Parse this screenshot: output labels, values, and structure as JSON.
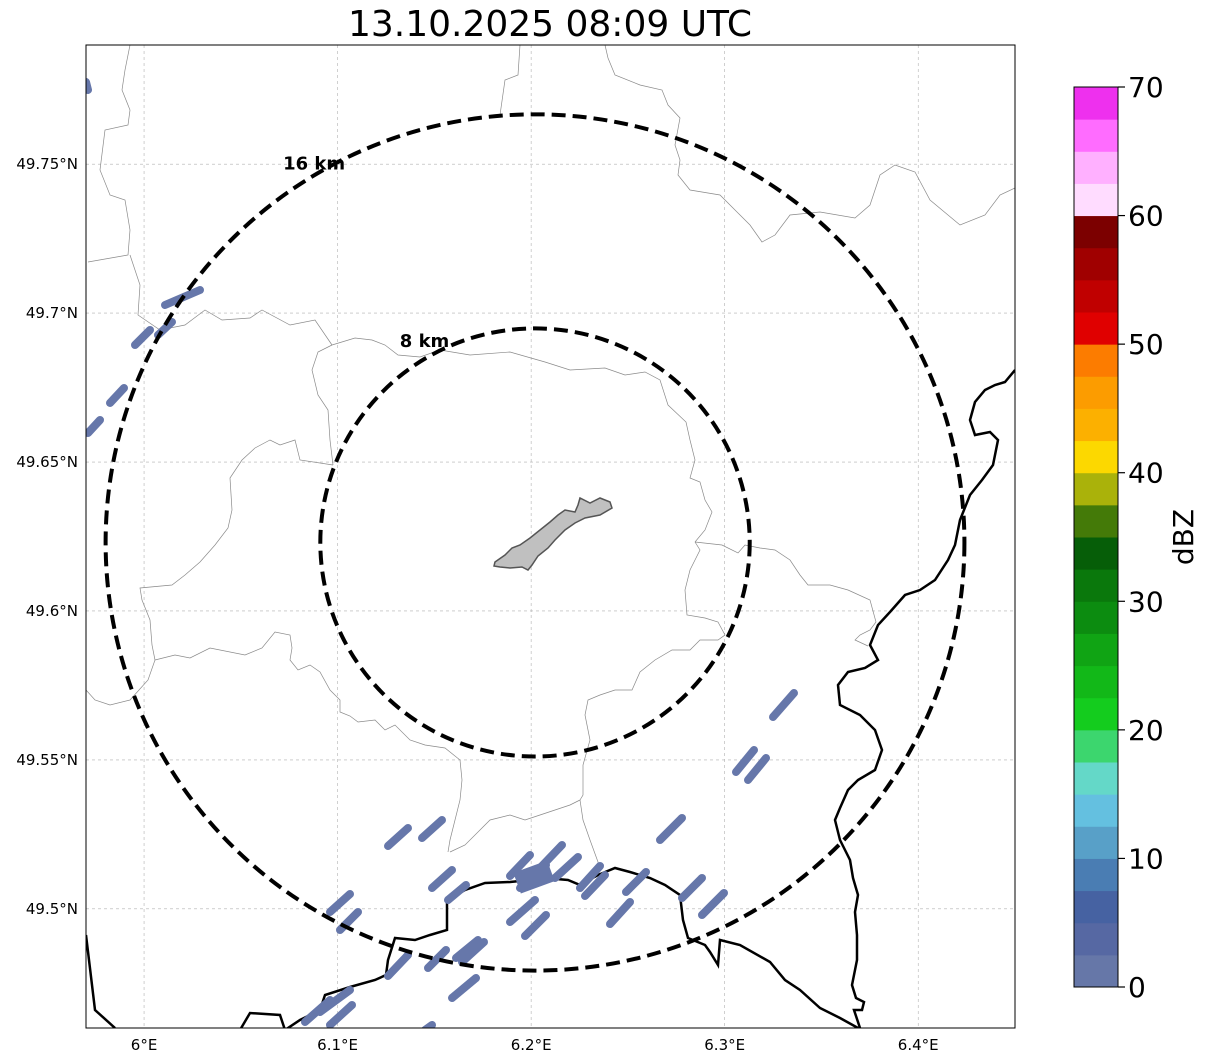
{
  "title": "13.10.2025 08:09 UTC",
  "map": {
    "lon_range": [
      5.97,
      6.45
    ],
    "lat_range": [
      49.46,
      49.79
    ],
    "lon_ticks": [
      {
        "value": 6.0,
        "label": "6°E"
      },
      {
        "value": 6.1,
        "label": "6.1°E"
      },
      {
        "value": 6.2,
        "label": "6.2°E"
      },
      {
        "value": 6.3,
        "label": "6.3°E"
      },
      {
        "value": 6.4,
        "label": "6.4°E"
      }
    ],
    "lat_ticks": [
      {
        "value": 49.5,
        "label": "49.5°N"
      },
      {
        "value": 49.55,
        "label": "49.55°N"
      },
      {
        "value": 49.6,
        "label": "49.6°N"
      },
      {
        "value": 49.65,
        "label": "49.65°N"
      },
      {
        "value": 49.7,
        "label": "49.7°N"
      },
      {
        "value": 49.75,
        "label": "49.75°N"
      }
    ],
    "radar_center": {
      "lon": 6.202,
      "lat": 49.623
    },
    "rings": [
      {
        "radius_km": 8,
        "label": "8 km"
      },
      {
        "radius_km": 16,
        "label": "16 km"
      }
    ],
    "echo_color": "#6677aa"
  },
  "colorbar": {
    "label": "dBZ",
    "min": 0,
    "max": 70,
    "ticks": [
      "0",
      "10",
      "20",
      "30",
      "40",
      "50",
      "60",
      "70"
    ],
    "colors": [
      "#6677a8",
      "#5668a3",
      "#4662a2",
      "#4a7db3",
      "#58a0c8",
      "#64c0e0",
      "#64d8c8",
      "#3cd66e",
      "#14cc1e",
      "#12b818",
      "#10a414",
      "#0c8c10",
      "#0a780c",
      "#065e08",
      "#447a08",
      "#aab20a",
      "#fcd800",
      "#fcb000",
      "#fc9c00",
      "#fc7c00",
      "#e00000",
      "#c00000",
      "#a00000",
      "#7c0000",
      "#ffdcff",
      "#ffb0ff",
      "#ff6cff",
      "#ee30ee"
    ]
  }
}
